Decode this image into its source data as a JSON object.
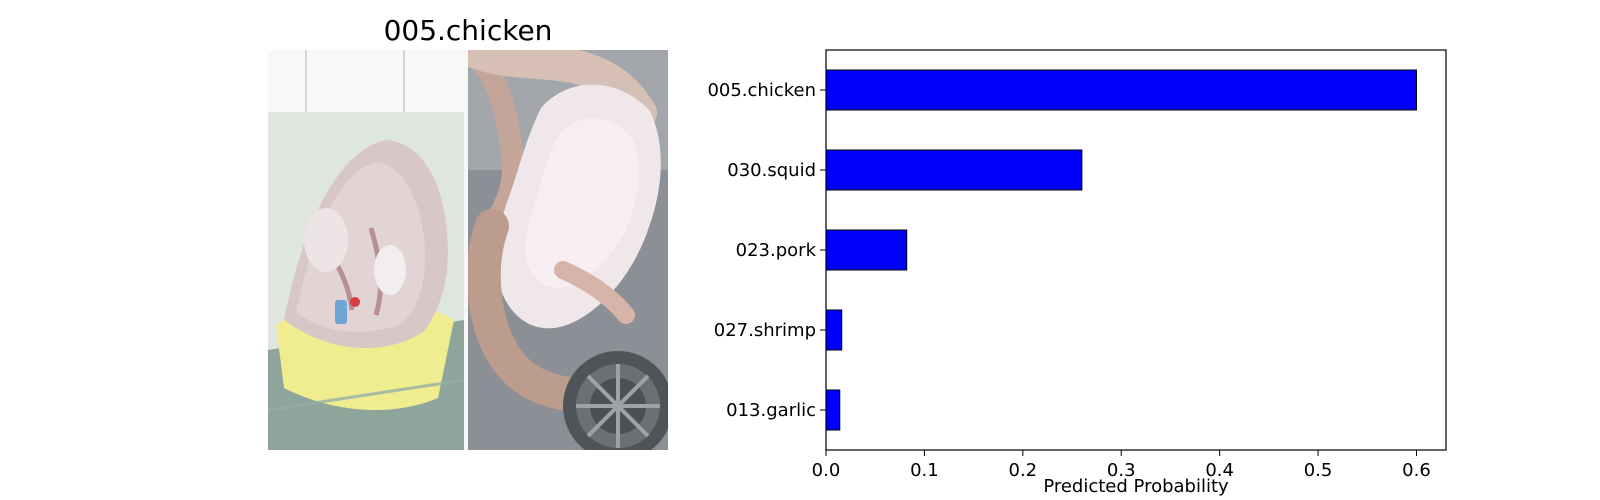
{
  "image_panel": {
    "title": "005.chicken",
    "description_hidden": false
  },
  "chart_data": {
    "type": "bar",
    "orientation": "horizontal",
    "categories": [
      "005.chicken",
      "030.squid",
      "023.pork",
      "027.shrimp",
      "013.garlic"
    ],
    "values": [
      0.6,
      0.26,
      0.082,
      0.016,
      0.014
    ],
    "xlabel": "Predicted Probability",
    "xlim": [
      0,
      0.63
    ],
    "xticks": [
      "0.0",
      "0.1",
      "0.2",
      "0.3",
      "0.4",
      "0.5",
      "0.6"
    ],
    "bar_color": "#0000ff",
    "edge_color": "#000000",
    "grid": false
  }
}
